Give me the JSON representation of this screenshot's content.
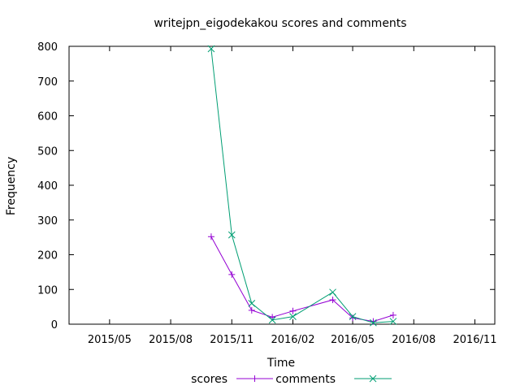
{
  "chart_data": {
    "type": "line",
    "title": "writejpn_eigodekakou scores and comments",
    "xlabel": "Time",
    "ylabel": "Frequency",
    "ylim": [
      0,
      800
    ],
    "yticks": [
      0,
      100,
      200,
      300,
      400,
      500,
      600,
      700,
      800
    ],
    "xlim": [
      "2015-03-01",
      "2016-12-01"
    ],
    "xticks": [
      {
        "date": "2015-05-01",
        "label": "2015/05"
      },
      {
        "date": "2015-08-01",
        "label": "2015/08"
      },
      {
        "date": "2015-11-01",
        "label": "2015/11"
      },
      {
        "date": "2016-02-01",
        "label": "2016/02"
      },
      {
        "date": "2016-05-01",
        "label": "2016/05"
      },
      {
        "date": "2016-08-01",
        "label": "2016/08"
      },
      {
        "date": "2016-11-01",
        "label": "2016/11"
      }
    ],
    "grid": false,
    "legend_position": "bottom",
    "series": [
      {
        "name": "scores",
        "color": "#9400d3",
        "marker": "plus",
        "points": [
          {
            "x": "2015-10-01",
            "y": 252
          },
          {
            "x": "2015-11-01",
            "y": 143
          },
          {
            "x": "2015-12-01",
            "y": 40
          },
          {
            "x": "2016-01-01",
            "y": 20
          },
          {
            "x": "2016-02-01",
            "y": 38
          },
          {
            "x": "2016-04-01",
            "y": 70
          },
          {
            "x": "2016-05-01",
            "y": 18
          },
          {
            "x": "2016-06-01",
            "y": 8
          },
          {
            "x": "2016-07-01",
            "y": 26
          }
        ]
      },
      {
        "name": "comments",
        "color": "#009e73",
        "marker": "cross",
        "points": [
          {
            "x": "2015-10-01",
            "y": 793
          },
          {
            "x": "2015-11-01",
            "y": 257
          },
          {
            "x": "2015-12-01",
            "y": 60
          },
          {
            "x": "2016-01-01",
            "y": 12
          },
          {
            "x": "2016-02-01",
            "y": 22
          },
          {
            "x": "2016-04-01",
            "y": 92
          },
          {
            "x": "2016-05-01",
            "y": 22
          },
          {
            "x": "2016-06-01",
            "y": 4
          },
          {
            "x": "2016-07-01",
            "y": 8
          }
        ]
      }
    ]
  }
}
